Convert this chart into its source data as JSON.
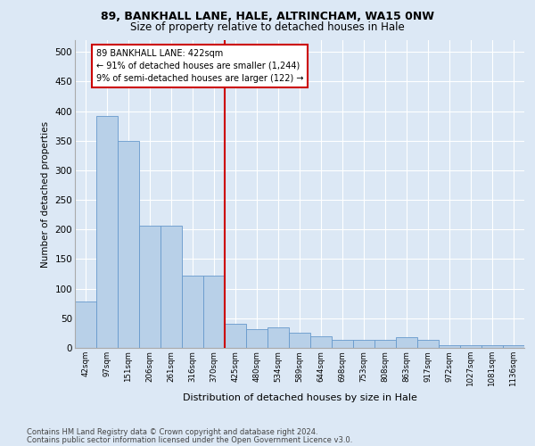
{
  "title1": "89, BANKHALL LANE, HALE, ALTRINCHAM, WA15 0NW",
  "title2": "Size of property relative to detached houses in Hale",
  "xlabel": "Distribution of detached houses by size in Hale",
  "ylabel": "Number of detached properties",
  "categories": [
    "42sqm",
    "97sqm",
    "151sqm",
    "206sqm",
    "261sqm",
    "316sqm",
    "370sqm",
    "425sqm",
    "480sqm",
    "534sqm",
    "589sqm",
    "644sqm",
    "698sqm",
    "753sqm",
    "808sqm",
    "863sqm",
    "917sqm",
    "972sqm",
    "1027sqm",
    "1081sqm",
    "1136sqm"
  ],
  "values": [
    78,
    392,
    350,
    207,
    207,
    122,
    122,
    40,
    32,
    34,
    25,
    20,
    14,
    14,
    14,
    18,
    14,
    5,
    5,
    5,
    5
  ],
  "bar_color": "#b8d0e8",
  "bar_edge_color": "#6699cc",
  "vline_color": "#cc0000",
  "annotation_title": "89 BANKHALL LANE: 422sqm",
  "annotation_line1": "← 91% of detached houses are smaller (1,244)",
  "annotation_line2": "9% of semi-detached houses are larger (122) →",
  "annotation_box_color": "#cc0000",
  "ylim": [
    0,
    520
  ],
  "yticks": [
    0,
    50,
    100,
    150,
    200,
    250,
    300,
    350,
    400,
    450,
    500
  ],
  "footnote1": "Contains HM Land Registry data © Crown copyright and database right 2024.",
  "footnote2": "Contains public sector information licensed under the Open Government Licence v3.0.",
  "fig_bg_color": "#dce8f5",
  "plot_bg_color": "#dce8f5"
}
